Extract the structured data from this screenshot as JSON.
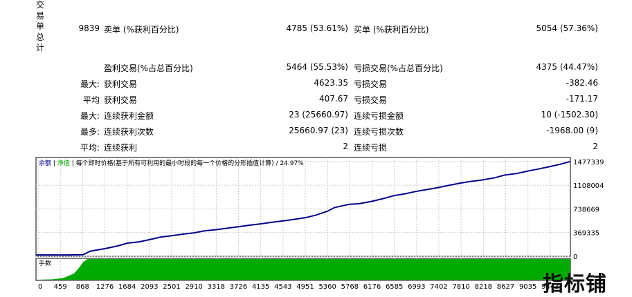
{
  "section_title_chars": [
    "交",
    "易",
    "单",
    "总",
    "计"
  ],
  "rows": [
    {
      "c1": "9839",
      "c2": "卖单 (%获利百分比)",
      "c3": "4785 (53.61%)",
      "c4": "买单 (%获利百分比)",
      "c5": "5054 (57.36%)"
    },
    {
      "c1": "",
      "c2": "盈利交易(%占总百分比)",
      "c3": "5464 (55.53%)",
      "c4": "亏损交易(%占总百分比)",
      "c5": "4375 (44.47%)"
    },
    {
      "c1": "最大:",
      "c2": "获利交易",
      "c3": "4623.35",
      "c4": "亏损交易",
      "c5": "-382.46"
    },
    {
      "c1": "平均",
      "c2": "获利交易",
      "c3": "407.67",
      "c4": "亏损交易",
      "c5": "-171.17"
    },
    {
      "c1": "最大:",
      "c2": "连续获利金额",
      "c3": "23 (25660.97)",
      "c4": "连续亏损金额",
      "c5": "10 (-1502.30)"
    },
    {
      "c1": "最多:",
      "c2": "连续获利次数",
      "c3": "25660.97 (23)",
      "c4": "连续亏损次数",
      "c5": "-1968.00 (9)"
    },
    {
      "c1": "平均:",
      "c2": "连续获利",
      "c3": "2",
      "c4": "连续亏损",
      "c5": "2"
    }
  ],
  "chart_data": {
    "type": "line",
    "legend": {
      "balance": "余额",
      "equity": "净值",
      "model": "每个即时价格(基于所有可利用的最小时段的每一个价格的分形插值计算)",
      "separator": "/",
      "quality": "24.97%"
    },
    "y_ticks": [
      "1477339",
      "1108004",
      "738669",
      "369335",
      "0"
    ],
    "ylim": [
      0,
      1540000
    ],
    "x_ticks": [
      "0",
      "459",
      "868",
      "1276",
      "1684",
      "2093",
      "2501",
      "2910",
      "3318",
      "3726",
      "4135",
      "4543",
      "4951",
      "5360",
      "5768",
      "6176",
      "6585",
      "6993",
      "7402",
      "7810",
      "8218",
      "8627",
      "9035",
      "9443"
    ],
    "xlim": [
      0,
      9839
    ],
    "series": [
      {
        "color": "#00008b",
        "x": [
          0,
          300,
          600,
          868,
          1000,
          1276,
          1500,
          1684,
          1900,
          2093,
          2300,
          2501,
          2700,
          2910,
          3100,
          3318,
          3500,
          3726,
          3900,
          4135,
          4300,
          4543,
          4750,
          4951,
          5150,
          5360,
          5500,
          5768,
          5950,
          6176,
          6400,
          6585,
          6800,
          6993,
          7200,
          7402,
          7600,
          7810,
          8000,
          8218,
          8450,
          8627,
          8850,
          9035,
          9250,
          9443,
          9650,
          9839
        ],
        "values": [
          20000,
          20000,
          21000,
          25000,
          80000,
          120000,
          160000,
          205000,
          225000,
          260000,
          300000,
          320000,
          345000,
          365000,
          395000,
          415000,
          435000,
          460000,
          480000,
          505000,
          525000,
          550000,
          575000,
          600000,
          640000,
          700000,
          760000,
          810000,
          820000,
          855000,
          900000,
          945000,
          975000,
          1010000,
          1040000,
          1070000,
          1105000,
          1140000,
          1165000,
          1190000,
          1225000,
          1265000,
          1290000,
          1325000,
          1360000,
          1395000,
          1435000,
          1477339
        ]
      }
    ],
    "volume": {
      "label": "手数",
      "color": "#00aa00",
      "x": [
        0,
        300,
        500,
        700,
        800,
        868,
        950,
        1000,
        9839
      ],
      "values": [
        0,
        0.02,
        0.08,
        0.3,
        0.6,
        0.85,
        1.0,
        1.0,
        1.0
      ]
    }
  },
  "watermark": {
    "text": "指标铺"
  }
}
